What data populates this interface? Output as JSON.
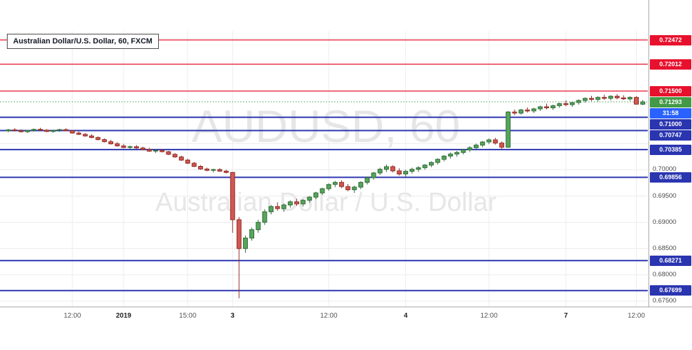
{
  "header": {
    "title": "Australian Dollar/U.S. Dollar, 60, FXCM"
  },
  "watermark": {
    "line1": "AUDUSD, 60",
    "line2": "Australian Dollar / U.S. Dollar"
  },
  "colors": {
    "up_fill": "#57a55d",
    "up_border": "#2f6a35",
    "down_fill": "#d05752",
    "down_border": "#922b24",
    "resistance": "#e8112d",
    "support": "#2a35b0",
    "last_price_badge": "#439a46",
    "countdown_badge": "#2962ff",
    "grid": "#ececec",
    "axis_text": "#4a4a4a",
    "watermark": "rgba(90,90,90,0.15)"
  },
  "chart_data": {
    "type": "candlestick",
    "title": "Australian Dollar/U.S. Dollar, 60, FXCM",
    "symbol": "AUDUSD",
    "timeframe_minutes": 60,
    "provider": "FXCM",
    "ylim": [
      0.67395,
      0.72643
    ],
    "grid_levels": [
      0.675,
      0.68,
      0.685,
      0.69,
      0.695,
      0.7,
      0.705,
      0.71,
      0.715,
      0.72,
      0.725
    ],
    "resistance_levels": [
      0.72472,
      0.72012,
      0.715
    ],
    "support_levels": [
      0.71,
      0.70747,
      0.70385,
      0.69856,
      0.68271,
      0.67699
    ],
    "last_price": 0.71293,
    "countdown": "31:58",
    "price_labels": [
      "0.70000",
      "0.69500",
      "0.69000",
      "0.68500",
      "0.68000",
      "0.67500"
    ],
    "time_labels": [
      {
        "text": "12:00",
        "index": 10,
        "bold": false
      },
      {
        "text": "2019",
        "index": 18,
        "bold": true
      },
      {
        "text": "15:00",
        "index": 28,
        "bold": false
      },
      {
        "text": "3",
        "index": 35,
        "bold": true
      },
      {
        "text": "12:00",
        "index": 50,
        "bold": false
      },
      {
        "text": "4",
        "index": 62,
        "bold": true
      },
      {
        "text": "12:00",
        "index": 75,
        "bold": false
      },
      {
        "text": "7",
        "index": 87,
        "bold": true
      },
      {
        "text": "12:00",
        "index": 98,
        "bold": false
      }
    ],
    "candles": [
      [
        0.7074,
        0.7078,
        0.70715,
        0.7076
      ],
      [
        0.7076,
        0.70795,
        0.7073,
        0.70745
      ],
      [
        0.70745,
        0.7077,
        0.7071,
        0.70725
      ],
      [
        0.70725,
        0.7076,
        0.707,
        0.7075
      ],
      [
        0.7075,
        0.70785,
        0.70728,
        0.7077
      ],
      [
        0.7077,
        0.708,
        0.7074,
        0.70755
      ],
      [
        0.70755,
        0.70775,
        0.70715,
        0.7073
      ],
      [
        0.7073,
        0.70765,
        0.70705,
        0.7075
      ],
      [
        0.7075,
        0.7078,
        0.70724,
        0.70765
      ],
      [
        0.70765,
        0.7079,
        0.70735,
        0.70745
      ],
      [
        0.70745,
        0.7076,
        0.7069,
        0.707
      ],
      [
        0.707,
        0.7073,
        0.7066,
        0.70675
      ],
      [
        0.70675,
        0.707,
        0.7063,
        0.70645
      ],
      [
        0.70645,
        0.7068,
        0.706,
        0.70615
      ],
      [
        0.70615,
        0.7064,
        0.7056,
        0.70575
      ],
      [
        0.70575,
        0.706,
        0.7052,
        0.70535
      ],
      [
        0.70535,
        0.7057,
        0.7048,
        0.70495
      ],
      [
        0.70495,
        0.7053,
        0.7044,
        0.70455
      ],
      [
        0.70455,
        0.7049,
        0.7041,
        0.70425
      ],
      [
        0.70425,
        0.7046,
        0.7039,
        0.7044
      ],
      [
        0.7044,
        0.7047,
        0.704,
        0.70415
      ],
      [
        0.70415,
        0.7044,
        0.7037,
        0.70385
      ],
      [
        0.70385,
        0.7042,
        0.7034,
        0.70355
      ],
      [
        0.70355,
        0.7039,
        0.7032,
        0.7037
      ],
      [
        0.7037,
        0.704,
        0.7033,
        0.70345
      ],
      [
        0.70345,
        0.7036,
        0.7028,
        0.70295
      ],
      [
        0.70295,
        0.7032,
        0.7023,
        0.70245
      ],
      [
        0.70245,
        0.7027,
        0.7017,
        0.70185
      ],
      [
        0.70185,
        0.7021,
        0.7011,
        0.70125
      ],
      [
        0.70125,
        0.7015,
        0.7005,
        0.70065
      ],
      [
        0.70065,
        0.7009,
        0.7,
        0.70015
      ],
      [
        0.70015,
        0.7004,
        0.6997,
        0.6999
      ],
      [
        0.6999,
        0.7002,
        0.6995,
        0.70005
      ],
      [
        0.70005,
        0.7003,
        0.6996,
        0.69975
      ],
      [
        0.69975,
        0.7,
        0.6993,
        0.6995
      ],
      [
        0.6995,
        0.6996,
        0.688,
        0.6905
      ],
      [
        0.6905,
        0.691,
        0.67552,
        0.685
      ],
      [
        0.685,
        0.6875,
        0.6842,
        0.687
      ],
      [
        0.687,
        0.689,
        0.6865,
        0.6886
      ],
      [
        0.6886,
        0.6905,
        0.688,
        0.69
      ],
      [
        0.69,
        0.6925,
        0.6895,
        0.692
      ],
      [
        0.692,
        0.6933,
        0.6915,
        0.693
      ],
      [
        0.693,
        0.6938,
        0.6922,
        0.6926
      ],
      [
        0.6926,
        0.6936,
        0.692,
        0.6933
      ],
      [
        0.6933,
        0.6942,
        0.6928,
        0.6939
      ],
      [
        0.6939,
        0.6945,
        0.6931,
        0.6935
      ],
      [
        0.6935,
        0.6944,
        0.693,
        0.6942
      ],
      [
        0.6942,
        0.695,
        0.6937,
        0.6948
      ],
      [
        0.6948,
        0.6958,
        0.6944,
        0.6956
      ],
      [
        0.6956,
        0.6966,
        0.6952,
        0.6964
      ],
      [
        0.6964,
        0.6974,
        0.696,
        0.6972
      ],
      [
        0.6972,
        0.6979,
        0.6967,
        0.6976
      ],
      [
        0.6976,
        0.698,
        0.6965,
        0.6968
      ],
      [
        0.6968,
        0.6973,
        0.6959,
        0.6962
      ],
      [
        0.6962,
        0.697,
        0.6956,
        0.6967
      ],
      [
        0.6967,
        0.6978,
        0.6963,
        0.6976
      ],
      [
        0.6976,
        0.6987,
        0.6972,
        0.6985
      ],
      [
        0.6985,
        0.6996,
        0.6981,
        0.6994
      ],
      [
        0.6994,
        0.7004,
        0.699,
        0.7001
      ],
      [
        0.7001,
        0.701,
        0.6996,
        0.7006
      ],
      [
        0.7006,
        0.7009,
        0.6995,
        0.6998
      ],
      [
        0.6998,
        0.7003,
        0.6989,
        0.6992
      ],
      [
        0.6992,
        0.7,
        0.6987,
        0.6997
      ],
      [
        0.6997,
        0.7004,
        0.6993,
        0.7001
      ],
      [
        0.7001,
        0.7007,
        0.6996,
        0.7004
      ],
      [
        0.7004,
        0.7011,
        0.7,
        0.7009
      ],
      [
        0.7009,
        0.7016,
        0.7005,
        0.7014
      ],
      [
        0.7014,
        0.7022,
        0.701,
        0.702
      ],
      [
        0.702,
        0.7028,
        0.7016,
        0.7026
      ],
      [
        0.7026,
        0.7033,
        0.7021,
        0.703
      ],
      [
        0.703,
        0.7036,
        0.7025,
        0.7033
      ],
      [
        0.7033,
        0.704,
        0.7029,
        0.7038
      ],
      [
        0.7038,
        0.7045,
        0.7034,
        0.7042
      ],
      [
        0.7042,
        0.705,
        0.7038,
        0.7047
      ],
      [
        0.7047,
        0.7055,
        0.7043,
        0.7053
      ],
      [
        0.7053,
        0.706,
        0.7049,
        0.7057
      ],
      [
        0.7057,
        0.7061,
        0.7048,
        0.7051
      ],
      [
        0.7051,
        0.7054,
        0.704,
        0.7043
      ],
      [
        0.7043,
        0.7112,
        0.7042,
        0.711
      ],
      [
        0.711,
        0.7115,
        0.7104,
        0.7108
      ],
      [
        0.7108,
        0.7116,
        0.7105,
        0.7114
      ],
      [
        0.7114,
        0.7119,
        0.7109,
        0.7112
      ],
      [
        0.7112,
        0.7118,
        0.7108,
        0.7116
      ],
      [
        0.7116,
        0.7122,
        0.7112,
        0.712
      ],
      [
        0.712,
        0.7126,
        0.7115,
        0.7118
      ],
      [
        0.7118,
        0.7124,
        0.7114,
        0.7122
      ],
      [
        0.7122,
        0.7128,
        0.7118,
        0.7126
      ],
      [
        0.7126,
        0.7132,
        0.7121,
        0.7124
      ],
      [
        0.7124,
        0.713,
        0.712,
        0.7128
      ],
      [
        0.7128,
        0.7134,
        0.7124,
        0.7132
      ],
      [
        0.7132,
        0.7138,
        0.7128,
        0.7136
      ],
      [
        0.7136,
        0.7141,
        0.7131,
        0.7134
      ],
      [
        0.7134,
        0.714,
        0.713,
        0.7138
      ],
      [
        0.7138,
        0.7143,
        0.7133,
        0.7136
      ],
      [
        0.7136,
        0.7142,
        0.7132,
        0.714
      ],
      [
        0.714,
        0.7144,
        0.7134,
        0.7137
      ],
      [
        0.7137,
        0.7142,
        0.7133,
        0.7135
      ],
      [
        0.7135,
        0.714,
        0.7131,
        0.7138
      ],
      [
        0.7138,
        0.714,
        0.7124,
        0.7125
      ],
      [
        0.7125,
        0.7133,
        0.7123,
        0.71293
      ]
    ]
  }
}
